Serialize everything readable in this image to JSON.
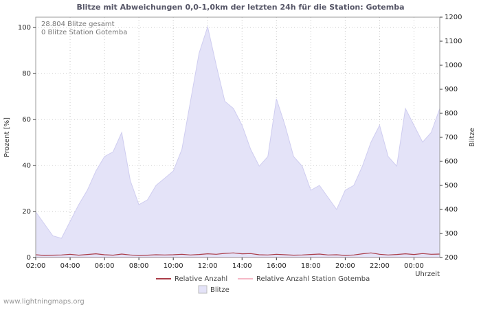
{
  "title": "Blitze mit Abweichungen 0,0-1,0km der letzten 24h für die Station: Gotemba",
  "annotations": {
    "total": "28.804 Blitze gesamt",
    "station": "0 Blitze Station Gotemba"
  },
  "axes": {
    "left_label": "Prozent  [%]",
    "right_label": "Blitze",
    "x_label": "Uhrzeit"
  },
  "legend": {
    "relative": "Relative Anzahl",
    "relative_station": "Relative Anzahl Station Gotemba",
    "blitze": "Blitze"
  },
  "watermark": "www.lightningmaps.org",
  "colors": {
    "area": "#e4e3f8",
    "area_stroke": "#cfcdf0",
    "line_relative": "#aa3b47",
    "line_station": "#f5b8c6",
    "grid": "#c8c8c8",
    "axis": "#888888"
  },
  "chart_data": {
    "type": "area",
    "title": "Blitze mit Abweichungen 0,0-1,0km der letzten 24h für die Station: Gotemba",
    "xlabel": "Uhrzeit",
    "ylabel_left": "Prozent [%]",
    "ylabel_right": "Blitze",
    "x_start": "02:00",
    "x_step_minutes": 30,
    "x_tick_labels": [
      "02:00",
      "04:00",
      "06:00",
      "08:00",
      "10:00",
      "12:00",
      "14:00",
      "16:00",
      "18:00",
      "20:00",
      "22:00",
      "00:00"
    ],
    "ylim_left": [
      0,
      100
    ],
    "yticks_left": [
      0,
      20,
      40,
      60,
      80,
      100
    ],
    "ylim_right": [
      200,
      1200
    ],
    "yticks_right": [
      200,
      300,
      400,
      500,
      600,
      700,
      800,
      900,
      1000,
      1100,
      1200
    ],
    "grid": true,
    "legend_position": "bottom",
    "series": [
      {
        "name": "Blitze",
        "type": "area",
        "axis": "right",
        "values": [
          390,
          340,
          290,
          280,
          350,
          420,
          480,
          560,
          620,
          640,
          720,
          520,
          420,
          440,
          500,
          530,
          560,
          650,
          850,
          1050,
          1160,
          1000,
          850,
          820,
          750,
          650,
          580,
          620,
          860,
          750,
          620,
          580,
          480,
          500,
          450,
          400,
          480,
          500,
          580,
          680,
          750,
          620,
          580,
          820,
          750,
          680,
          720,
          820
        ]
      },
      {
        "name": "Relative Anzahl",
        "type": "line",
        "axis": "left",
        "values": [
          1.2,
          0.9,
          1.0,
          1.1,
          1.4,
          1.0,
          1.3,
          1.6,
          1.2,
          1.0,
          1.5,
          1.1,
          0.8,
          1.0,
          1.2,
          1.1,
          1.2,
          1.4,
          1.1,
          1.3,
          1.6,
          1.4,
          1.8,
          2.0,
          1.6,
          1.7,
          1.2,
          1.1,
          1.4,
          1.2,
          1.0,
          1.1,
          1.3,
          1.5,
          1.1,
          1.2,
          0.9,
          1.1,
          1.6,
          2.0,
          1.4,
          1.1,
          1.3,
          1.6,
          1.3,
          1.7,
          1.4,
          1.5
        ]
      },
      {
        "name": "Relative Anzahl Station Gotemba",
        "type": "line",
        "axis": "left",
        "values": [
          0,
          0,
          0,
          0,
          0,
          0,
          0,
          0,
          0,
          0,
          0,
          0,
          0,
          0,
          0,
          0,
          0,
          0,
          0,
          0,
          0,
          0,
          0,
          0,
          0,
          0,
          0,
          0,
          0,
          0,
          0,
          0,
          0,
          0,
          0,
          0,
          0,
          0,
          0,
          0,
          0,
          0,
          0,
          0,
          0,
          0,
          0,
          0
        ]
      }
    ]
  }
}
